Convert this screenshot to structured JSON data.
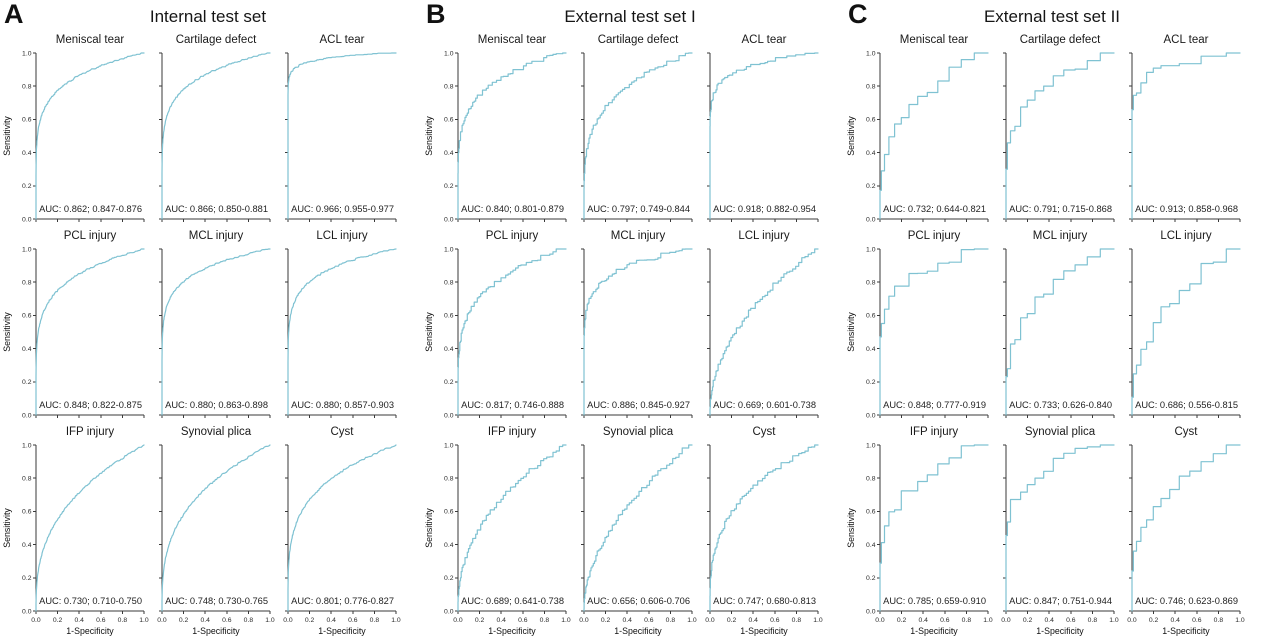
{
  "figure": {
    "curve_color": "#7fc2d2",
    "axis_color": "#3a3a3a",
    "xlabel": "1-Specificity",
    "ylabel": "Sensitivity"
  },
  "chart_data": [
    {
      "type": "line",
      "panel": "A",
      "title": "Internal test set",
      "curve_style": "smooth",
      "xlabel": "1-Specificity",
      "ylabel": "Sensitivity",
      "xlim": [
        0,
        1
      ],
      "ylim": [
        0,
        1
      ],
      "x_ticks": [
        0,
        0.2,
        0.4,
        0.6,
        0.8,
        1.0
      ],
      "y_ticks": [
        0,
        0.2,
        0.4,
        0.6,
        0.8,
        1.0
      ],
      "series": [
        {
          "name": "Meniscal tear",
          "auc": 0.862,
          "ci_low": 0.847,
          "ci_high": 0.876,
          "annotation": "AUC: 0.862; 0.847-0.876"
        },
        {
          "name": "Cartilage defect",
          "auc": 0.866,
          "ci_low": 0.85,
          "ci_high": 0.881,
          "annotation": "AUC: 0.866; 0.850-0.881"
        },
        {
          "name": "ACL tear",
          "auc": 0.966,
          "ci_low": 0.955,
          "ci_high": 0.977,
          "annotation": "AUC: 0.966; 0.955-0.977"
        },
        {
          "name": "PCL injury",
          "auc": 0.848,
          "ci_low": 0.822,
          "ci_high": 0.875,
          "annotation": "AUC: 0.848; 0.822-0.875"
        },
        {
          "name": "MCL injury",
          "auc": 0.88,
          "ci_low": 0.863,
          "ci_high": 0.898,
          "annotation": "AUC: 0.880; 0.863-0.898"
        },
        {
          "name": "LCL injury",
          "auc": 0.88,
          "ci_low": 0.857,
          "ci_high": 0.903,
          "annotation": "AUC: 0.880; 0.857-0.903"
        },
        {
          "name": "IFP injury",
          "auc": 0.73,
          "ci_low": 0.71,
          "ci_high": 0.75,
          "annotation": "AUC: 0.730; 0.710-0.750"
        },
        {
          "name": "Synovial plica",
          "auc": 0.748,
          "ci_low": 0.73,
          "ci_high": 0.765,
          "annotation": "AUC: 0.748; 0.730-0.765"
        },
        {
          "name": "Cyst",
          "auc": 0.801,
          "ci_low": 0.776,
          "ci_high": 0.827,
          "annotation": "AUC: 0.801; 0.776-0.827"
        }
      ]
    },
    {
      "type": "line",
      "panel": "B",
      "title": "External test set I",
      "curve_style": "fine-step",
      "xlabel": "1-Specificity",
      "ylabel": "Sensitivity",
      "xlim": [
        0,
        1
      ],
      "ylim": [
        0,
        1
      ],
      "x_ticks": [
        0,
        0.2,
        0.4,
        0.6,
        0.8,
        1.0
      ],
      "y_ticks": [
        0,
        0.2,
        0.4,
        0.6,
        0.8,
        1.0
      ],
      "series": [
        {
          "name": "Meniscal tear",
          "auc": 0.84,
          "ci_low": 0.801,
          "ci_high": 0.879,
          "annotation": "AUC: 0.840; 0.801-0.879"
        },
        {
          "name": "Cartilage defect",
          "auc": 0.797,
          "ci_low": 0.749,
          "ci_high": 0.844,
          "annotation": "AUC: 0.797; 0.749-0.844"
        },
        {
          "name": "ACL tear",
          "auc": 0.918,
          "ci_low": 0.882,
          "ci_high": 0.954,
          "annotation": "AUC: 0.918; 0.882-0.954"
        },
        {
          "name": "PCL injury",
          "auc": 0.817,
          "ci_low": 0.746,
          "ci_high": 0.888,
          "annotation": "AUC: 0.817; 0.746-0.888"
        },
        {
          "name": "MCL injury",
          "auc": 0.886,
          "ci_low": 0.845,
          "ci_high": 0.927,
          "annotation": "AUC: 0.886; 0.845-0.927"
        },
        {
          "name": "LCL injury",
          "auc": 0.669,
          "ci_low": 0.601,
          "ci_high": 0.738,
          "annotation": "AUC: 0.669; 0.601-0.738"
        },
        {
          "name": "IFP injury",
          "auc": 0.689,
          "ci_low": 0.641,
          "ci_high": 0.738,
          "annotation": "AUC: 0.689; 0.641-0.738"
        },
        {
          "name": "Synovial plica",
          "auc": 0.656,
          "ci_low": 0.606,
          "ci_high": 0.706,
          "annotation": "AUC: 0.656; 0.606-0.706"
        },
        {
          "name": "Cyst",
          "auc": 0.747,
          "ci_low": 0.68,
          "ci_high": 0.813,
          "annotation": "AUC: 0.747; 0.680-0.813"
        }
      ]
    },
    {
      "type": "line",
      "panel": "C",
      "title": "External test set II",
      "curve_style": "coarse-step",
      "xlabel": "1-Specificity",
      "ylabel": "Sensitivity",
      "xlim": [
        0,
        1
      ],
      "ylim": [
        0,
        1
      ],
      "x_ticks": [
        0,
        0.2,
        0.4,
        0.6,
        0.8,
        1.0
      ],
      "y_ticks": [
        0,
        0.2,
        0.4,
        0.6,
        0.8,
        1.0
      ],
      "series": [
        {
          "name": "Meniscal tear",
          "auc": 0.732,
          "ci_low": 0.644,
          "ci_high": 0.821,
          "annotation": "AUC: 0.732; 0.644-0.821"
        },
        {
          "name": "Cartilage defect",
          "auc": 0.791,
          "ci_low": 0.715,
          "ci_high": 0.868,
          "annotation": "AUC: 0.791; 0.715-0.868"
        },
        {
          "name": "ACL tear",
          "auc": 0.913,
          "ci_low": 0.858,
          "ci_high": 0.968,
          "annotation": "AUC: 0.913; 0.858-0.968"
        },
        {
          "name": "PCL injury",
          "auc": 0.848,
          "ci_low": 0.777,
          "ci_high": 0.919,
          "annotation": "AUC: 0.848; 0.777-0.919"
        },
        {
          "name": "MCL injury",
          "auc": 0.733,
          "ci_low": 0.626,
          "ci_high": 0.84,
          "annotation": "AUC: 0.733; 0.626-0.840"
        },
        {
          "name": "LCL injury",
          "auc": 0.686,
          "ci_low": 0.556,
          "ci_high": 0.815,
          "annotation": "AUC: 0.686; 0.556-0.815"
        },
        {
          "name": "IFP injury",
          "auc": 0.785,
          "ci_low": 0.659,
          "ci_high": 0.91,
          "annotation": "AUC: 0.785; 0.659-0.910"
        },
        {
          "name": "Synovial plica",
          "auc": 0.847,
          "ci_low": 0.751,
          "ci_high": 0.944,
          "annotation": "AUC: 0.847; 0.751-0.944"
        },
        {
          "name": "Cyst",
          "auc": 0.746,
          "ci_low": 0.623,
          "ci_high": 0.869,
          "annotation": "AUC: 0.746; 0.623-0.869"
        }
      ]
    }
  ]
}
